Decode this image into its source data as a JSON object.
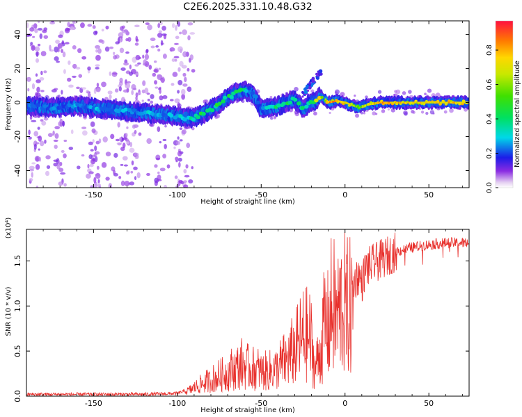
{
  "title": "C2E6.2025.331.10.48.G32",
  "chart_data": [
    {
      "type": "heatmap",
      "name": "spectrogram",
      "xlabel": "Height of straight line (km)",
      "ylabel": "Frequency (Hz)",
      "xlim": [
        -190,
        74
      ],
      "ylim": [
        -50,
        48
      ],
      "xticks": [
        -150,
        -100,
        -50,
        0,
        50
      ],
      "yticks": [
        -40,
        -20,
        0,
        20,
        40
      ],
      "colorbar": {
        "label": "Normalized spectral amplitude",
        "range": [
          0,
          0.97
        ],
        "ticks": [
          0.0,
          0.2,
          0.4,
          0.6,
          0.8
        ]
      },
      "track": {
        "x": [
          -190,
          -175,
          -160,
          -150,
          -140,
          -130,
          -120,
          -110,
          -100,
          -95,
          -90,
          -85,
          -80,
          -75,
          -70,
          -65,
          -60,
          -55,
          -52,
          -50,
          -45,
          -40,
          -35,
          -30,
          -25,
          -20,
          -18,
          -16,
          -14,
          -12,
          -10,
          -5,
          0,
          5,
          8,
          10,
          15,
          20,
          30,
          40,
          50,
          60,
          74
        ],
        "freq": [
          -2,
          -3,
          -2,
          -3,
          -4,
          -5,
          -6,
          -7,
          -8,
          -9,
          -9,
          -7,
          -4,
          -1,
          3,
          6,
          7,
          5,
          0,
          -4,
          -3,
          -2,
          0,
          2,
          -4,
          1,
          0,
          3,
          4,
          2,
          0,
          1,
          0,
          -2,
          -3,
          -2,
          -1,
          0,
          0,
          0,
          0,
          0,
          0
        ],
        "amplitude": [
          0.25,
          0.25,
          0.28,
          0.3,
          0.3,
          0.32,
          0.33,
          0.3,
          0.32,
          0.35,
          0.45,
          0.5,
          0.45,
          0.5,
          0.45,
          0.55,
          0.4,
          0.3,
          0.3,
          0.3,
          0.4,
          0.45,
          0.5,
          0.45,
          0.4,
          0.5,
          0.6,
          0.85,
          0.8,
          0.7,
          0.9,
          0.9,
          0.85,
          0.75,
          0.55,
          0.7,
          0.8,
          0.9,
          0.85,
          0.8,
          0.8,
          0.85,
          0.8
        ]
      }
    },
    {
      "type": "line",
      "name": "snr",
      "xlabel": "Height of straight line (km)",
      "ylabel": "SNR (10 * v/v)",
      "yscale_label": "(x10⁴)",
      "xlim": [
        -190,
        74
      ],
      "ylim": [
        0,
        1.85
      ],
      "xticks": [
        -150,
        -100,
        -50,
        0,
        50
      ],
      "yticks": [
        0.0,
        0.5,
        1.0,
        1.5
      ],
      "ytick_labels": [
        "0.0",
        "0.5",
        "1.0",
        "1.5"
      ],
      "color": "#e8302c",
      "envelope": {
        "x": [
          -190,
          -150,
          -120,
          -100,
          -95,
          -90,
          -85,
          -80,
          -75,
          -70,
          -65,
          -62,
          -58,
          -55,
          -50,
          -45,
          -40,
          -35,
          -30,
          -25,
          -22,
          -20,
          -18,
          -15,
          -12,
          -10,
          -8,
          -5,
          -2,
          0,
          2,
          5,
          8,
          10,
          12,
          15,
          20,
          25,
          30,
          40,
          50,
          60,
          74
        ],
        "y": [
          0.02,
          0.02,
          0.02,
          0.03,
          0.06,
          0.12,
          0.18,
          0.22,
          0.28,
          0.33,
          0.4,
          0.45,
          0.4,
          0.38,
          0.35,
          0.35,
          0.4,
          0.5,
          0.65,
          0.8,
          0.85,
          0.7,
          0.4,
          0.6,
          1.05,
          0.95,
          1.25,
          1.15,
          1.3,
          1.25,
          1.2,
          1.25,
          1.35,
          1.25,
          1.4,
          1.45,
          1.5,
          1.55,
          1.6,
          1.65,
          1.68,
          1.7,
          1.7
        ]
      }
    }
  ]
}
